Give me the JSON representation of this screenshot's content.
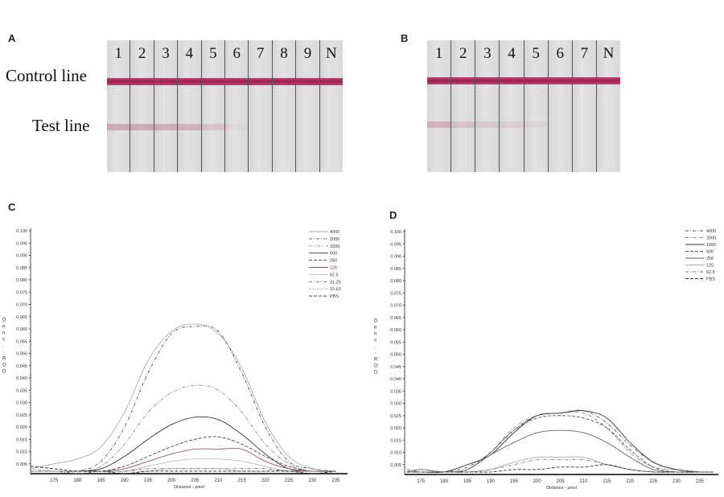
{
  "panels": {
    "a": {
      "label": "A",
      "control_label": "Control line",
      "test_label": "Test line",
      "strips": [
        {
          "label": "1",
          "test_line_intensity": 0.35
        },
        {
          "label": "2",
          "test_line_intensity": 0.35
        },
        {
          "label": "3",
          "test_line_intensity": 0.33
        },
        {
          "label": "4",
          "test_line_intensity": 0.3
        },
        {
          "label": "5",
          "test_line_intensity": 0.18
        },
        {
          "label": "6",
          "test_line_intensity": 0.05
        },
        {
          "label": "7",
          "test_line_intensity": 0
        },
        {
          "label": "8",
          "test_line_intensity": 0
        },
        {
          "label": "9",
          "test_line_intensity": 0
        },
        {
          "label": "N",
          "test_line_intensity": 0
        }
      ]
    },
    "b": {
      "label": "B",
      "strips": [
        {
          "label": "1",
          "test_line_intensity": 0.3
        },
        {
          "label": "2",
          "test_line_intensity": 0.2
        },
        {
          "label": "3",
          "test_line_intensity": 0.15
        },
        {
          "label": "4",
          "test_line_intensity": 0.1
        },
        {
          "label": "5",
          "test_line_intensity": 0.06
        },
        {
          "label": "6",
          "test_line_intensity": 0
        },
        {
          "label": "7",
          "test_line_intensity": 0
        },
        {
          "label": "N",
          "test_line_intensity": 0
        }
      ]
    },
    "c": {
      "label": "C"
    },
    "d": {
      "label": "D"
    }
  },
  "colors": {
    "control_line": "#a3204f",
    "test_line": "#b04a72",
    "strip": "#dcdcdc"
  },
  "chart_data": [
    {
      "panel": "C",
      "type": "line",
      "xlabel": "Distance - pixel",
      "ylabel": "Dens. - ROD",
      "xlim": [
        170,
        237.5
      ],
      "ylim": [
        0,
        0.1
      ],
      "x_ticks": [
        175,
        180,
        185,
        190,
        195,
        200,
        205,
        210,
        215,
        220,
        225,
        230,
        235
      ],
      "y_ticks": [
        "0.005",
        "0.010",
        "0.015",
        "0.020",
        "0.025",
        "0.030",
        "0.035",
        "0.040",
        "0.045",
        "0.050",
        "0.055",
        "0.060",
        "0.065",
        "0.070",
        "0.075",
        "0.080",
        "0.085",
        "0.090",
        "0.095",
        "0.100"
      ],
      "legend": "top-right",
      "x": [
        170,
        175,
        180,
        185,
        190,
        195,
        200,
        205,
        210,
        215,
        220,
        225,
        230,
        235
      ],
      "series": [
        {
          "name": "4000",
          "style": "solid",
          "color": "#aaaaaa",
          "values": [
            0.003,
            0.005,
            0.007,
            0.012,
            0.026,
            0.047,
            0.059,
            0.062,
            0.058,
            0.044,
            0.022,
            0.008,
            0.003,
            0.002
          ]
        },
        {
          "name": "2000",
          "style": "dashdot",
          "color": "#555555",
          "values": [
            0.002,
            0.002,
            0.002,
            0.006,
            0.02,
            0.042,
            0.058,
            0.061,
            0.059,
            0.042,
            0.02,
            0.006,
            0.003,
            0.002
          ]
        },
        {
          "name": "1000",
          "style": "dashdotdot",
          "color": "#888888",
          "values": [
            0.002,
            0.002,
            0.002,
            0.004,
            0.013,
            0.026,
            0.034,
            0.037,
            0.035,
            0.026,
            0.013,
            0.005,
            0.002,
            0.002
          ]
        },
        {
          "name": "500",
          "style": "solid",
          "color": "#333333",
          "values": [
            0.002,
            0.002,
            0.002,
            0.003,
            0.008,
            0.015,
            0.021,
            0.024,
            0.023,
            0.017,
            0.009,
            0.003,
            0.002,
            0.002
          ]
        },
        {
          "name": "250",
          "style": "dashed",
          "color": "#444444",
          "values": [
            0.002,
            0.002,
            0.002,
            0.002,
            0.004,
            0.008,
            0.012,
            0.015,
            0.016,
            0.013,
            0.008,
            0.004,
            0.002,
            0.002
          ]
        },
        {
          "name": "125",
          "style": "solid",
          "color": "#8a6060",
          "values": [
            0.002,
            0.002,
            0.002,
            0.002,
            0.003,
            0.006,
            0.009,
            0.011,
            0.011,
            0.011,
            0.006,
            0.003,
            0.002,
            0.002
          ]
        },
        {
          "name": "62.5",
          "style": "solid",
          "color": "#bbbbbb",
          "values": [
            0.002,
            0.002,
            0.002,
            0.002,
            0.002,
            0.004,
            0.006,
            0.007,
            0.007,
            0.006,
            0.004,
            0.002,
            0.002,
            0.002
          ]
        },
        {
          "name": "31.25",
          "style": "dashdot",
          "color": "#666666",
          "values": [
            0.002,
            0.002,
            0.001,
            0.002,
            0.002,
            0.003,
            0.003,
            0.003,
            0.003,
            0.003,
            0.003,
            0.002,
            0.002,
            0.002
          ]
        },
        {
          "name": "15.63",
          "style": "dotted",
          "color": "#777777",
          "values": [
            0.003,
            0.002,
            0.002,
            0.002,
            0.002,
            0.002,
            0.003,
            0.003,
            0.003,
            0.002,
            0.002,
            0.002,
            0.002,
            0.002
          ]
        },
        {
          "name": "PBS",
          "style": "dashed",
          "color": "#222222",
          "values": [
            0.004,
            0.003,
            0.002,
            0.002,
            0.001,
            0.002,
            0.002,
            0.002,
            0.002,
            0.002,
            0.002,
            0.002,
            0.001,
            0.002
          ]
        }
      ]
    },
    {
      "panel": "D",
      "type": "line",
      "xlabel": "Distance - pixel",
      "ylabel": "Dens. - ROD",
      "xlim": [
        171.5,
        239
      ],
      "ylim": [
        0,
        0.1
      ],
      "x_ticks": [
        175,
        180,
        185,
        190,
        195,
        200,
        205,
        210,
        215,
        220,
        225,
        230,
        235
      ],
      "y_ticks": [
        "0.005",
        "0.010",
        "0.015",
        "0.020",
        "0.025",
        "0.030",
        "0.035",
        "0.040",
        "0.045",
        "0.050",
        "0.055",
        "0.060",
        "0.065",
        "0.070",
        "0.075",
        "0.080",
        "0.085",
        "0.090",
        "0.095",
        "0.100"
      ],
      "legend": "top-right",
      "x": [
        172,
        175,
        180,
        185,
        190,
        195,
        200,
        205,
        210,
        215,
        220,
        225,
        230,
        235,
        238
      ],
      "series": [
        {
          "name": "4000",
          "style": "dashdot",
          "color": "#555555",
          "values": [
            0.003,
            0.002,
            0.002,
            0.004,
            0.01,
            0.019,
            0.025,
            0.026,
            0.027,
            0.022,
            0.013,
            0.006,
            0.003,
            0.002,
            0.002
          ]
        },
        {
          "name": "2000",
          "style": "dashdot",
          "color": "#888888",
          "values": [
            0.002,
            0.003,
            0.002,
            0.003,
            0.01,
            0.02,
            0.025,
            0.026,
            0.026,
            0.02,
            0.01,
            0.004,
            0.003,
            0.002,
            0.002
          ]
        },
        {
          "name": "1000",
          "style": "solid",
          "color": "#333333",
          "values": [
            0.002,
            0.002,
            0.002,
            0.005,
            0.009,
            0.018,
            0.025,
            0.026,
            0.027,
            0.024,
            0.014,
            0.006,
            0.003,
            0.002,
            0.002
          ]
        },
        {
          "name": "500",
          "style": "dashed",
          "color": "#555555",
          "values": [
            0.002,
            0.002,
            0.002,
            0.003,
            0.01,
            0.019,
            0.024,
            0.025,
            0.024,
            0.02,
            0.011,
            0.004,
            0.002,
            0.002,
            0.002
          ]
        },
        {
          "name": "250",
          "style": "solid",
          "color": "#666666",
          "values": [
            0.002,
            0.003,
            0.002,
            0.003,
            0.009,
            0.014,
            0.018,
            0.019,
            0.018,
            0.014,
            0.008,
            0.003,
            0.002,
            0.002,
            0.002
          ]
        },
        {
          "name": "125",
          "style": "solid",
          "color": "#aaaaaa",
          "values": [
            0.002,
            0.002,
            0.002,
            0.002,
            0.003,
            0.006,
            0.008,
            0.008,
            0.008,
            0.005,
            0.003,
            0.002,
            0.002,
            0.002,
            0.002
          ]
        },
        {
          "name": "62.5",
          "style": "dashdot",
          "color": "#777777",
          "values": [
            0.002,
            0.002,
            0.002,
            0.002,
            0.003,
            0.005,
            0.007,
            0.007,
            0.007,
            0.005,
            0.003,
            0.002,
            0.002,
            0.002,
            0.002
          ]
        },
        {
          "name": "PBS",
          "style": "dashed",
          "color": "#333333",
          "values": [
            0.002,
            0.002,
            0.002,
            0.002,
            0.002,
            0.003,
            0.003,
            0.004,
            0.004,
            0.005,
            0.003,
            0.002,
            0.002,
            0.002,
            0.002
          ]
        }
      ]
    }
  ]
}
